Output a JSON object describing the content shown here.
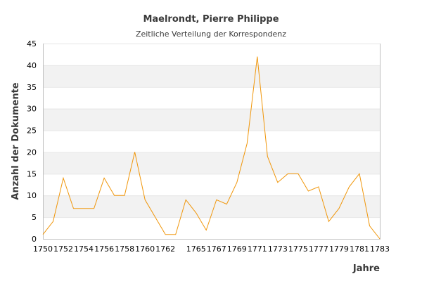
{
  "colors": {
    "line": "#f0960a",
    "band": "#f2f2f2",
    "grid": "#e6e6e6",
    "axis": "#c0c0c0"
  },
  "chart_data": {
    "type": "line",
    "title": "Maelrondt, Pierre Philippe",
    "subtitle": "Zeitliche Verteilung der Korrespondenz",
    "xlabel": "Jahre",
    "ylabel": "Anzahl der Dokumente",
    "xlim": [
      1750,
      1783
    ],
    "ylim": [
      0,
      45
    ],
    "x_ticks": [
      1750,
      1752,
      1754,
      1756,
      1758,
      1760,
      1762,
      1765,
      1767,
      1769,
      1771,
      1773,
      1775,
      1777,
      1779,
      1781,
      1783
    ],
    "y_ticks": [
      0,
      5,
      10,
      15,
      20,
      25,
      30,
      35,
      40,
      45
    ],
    "grid": true,
    "legend": "none",
    "series": [
      {
        "x": [
          1750,
          1751,
          1752,
          1753,
          1754,
          1755,
          1756,
          1757,
          1758,
          1759,
          1760,
          1761,
          1762,
          1763,
          1764,
          1765,
          1766,
          1767,
          1768,
          1769,
          1770,
          1771,
          1772,
          1773,
          1774,
          1775,
          1776,
          1777,
          1778,
          1779,
          1780,
          1781,
          1782,
          1783
        ],
        "values": [
          1,
          4,
          14,
          7,
          7,
          7,
          14,
          10,
          10,
          20,
          9,
          5,
          1,
          1,
          9,
          6,
          2,
          9,
          8,
          13,
          22,
          42,
          19,
          13,
          15,
          15,
          11,
          12,
          4,
          7,
          12,
          15,
          3,
          0
        ]
      }
    ]
  }
}
